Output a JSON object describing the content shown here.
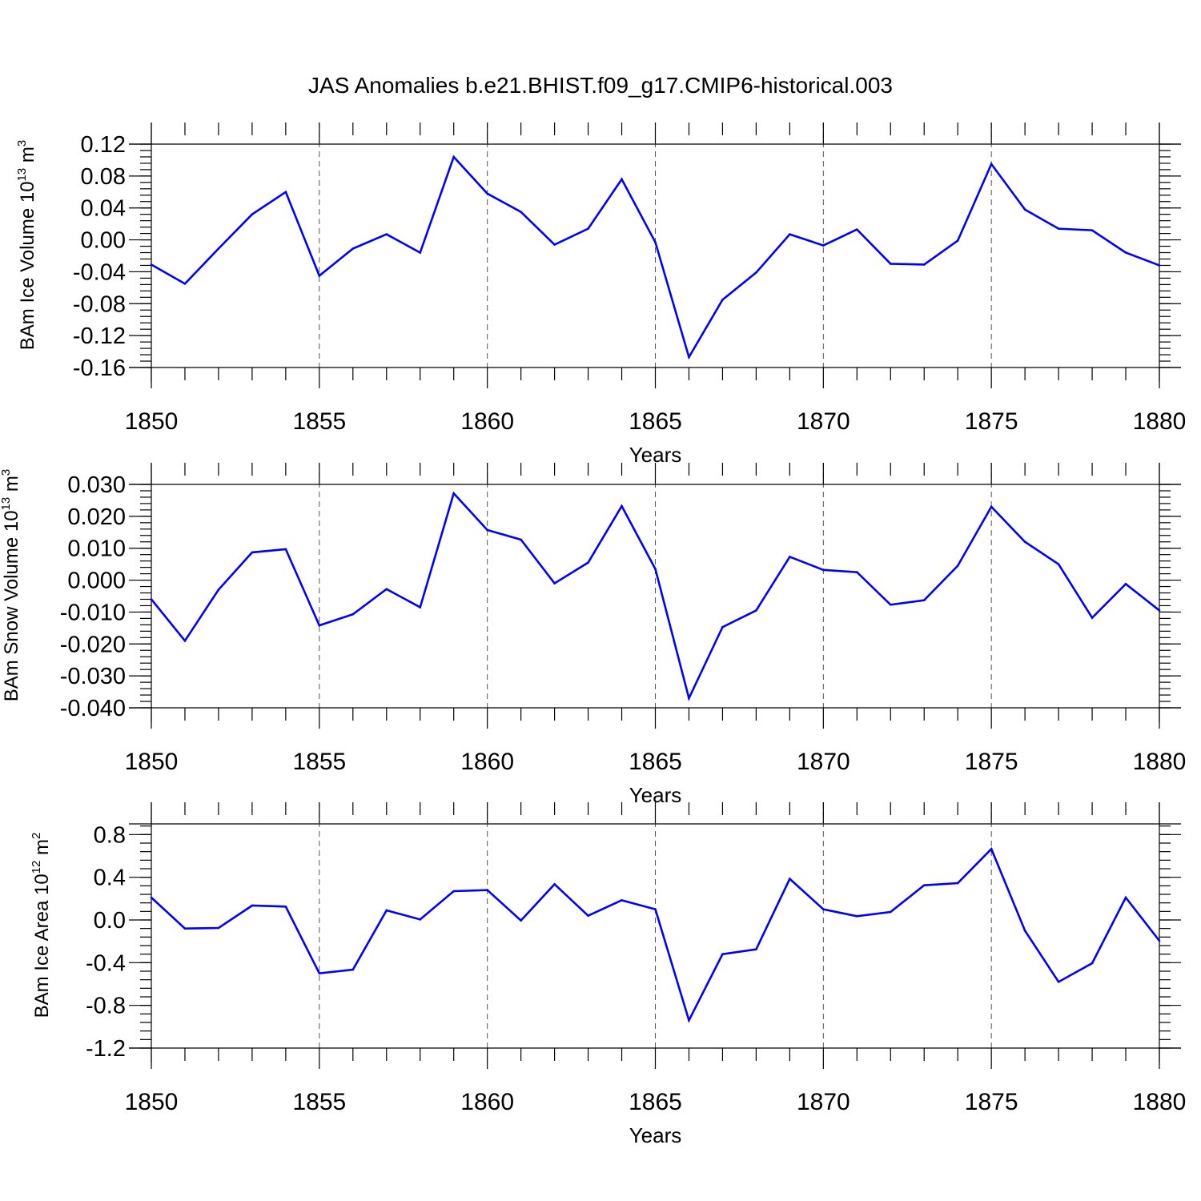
{
  "title": "JAS Anomalies b.e21.BHIST.f09_g17.CMIP6-historical.003",
  "colors": {
    "line": "#0000ff",
    "axis": "#000000",
    "grid": "#555555",
    "background": "#ffffff"
  },
  "chart_data": [
    {
      "type": "line",
      "xlabel": "Years",
      "ylabel": {
        "text": "BAm Ice Volume 10",
        "exp": "13",
        "unit": " m",
        "unit_exp": "3"
      },
      "xlim": [
        1850,
        1880
      ],
      "ylim": [
        -0.16,
        0.12
      ],
      "xticks": [
        "1850",
        "1855",
        "1860",
        "1865",
        "1870",
        "1875",
        "1880"
      ],
      "yticks": [
        "0.12",
        "0.08",
        "0.04",
        "0.00",
        "-0.04",
        "-0.08",
        "-0.12",
        "-0.16"
      ],
      "x": [
        1850,
        1851,
        1852,
        1853,
        1854,
        1855,
        1856,
        1857,
        1858,
        1859,
        1860,
        1861,
        1862,
        1863,
        1864,
        1865,
        1866,
        1867,
        1868,
        1869,
        1870,
        1871,
        1872,
        1873,
        1874,
        1875,
        1876,
        1877,
        1878,
        1879,
        1880
      ],
      "series": [
        {
          "values": [
            -0.031,
            -0.055,
            -0.011,
            0.032,
            0.06,
            -0.045,
            -0.011,
            0.007,
            -0.016,
            0.104,
            0.058,
            0.035,
            -0.006,
            0.014,
            0.076,
            -0.003,
            -0.147,
            -0.075,
            -0.041,
            0.007,
            -0.007,
            0.013,
            -0.03,
            -0.031,
            -0.001,
            0.095,
            0.038,
            0.014,
            0.012,
            -0.016,
            -0.032
          ]
        }
      ],
      "grid": "dashed vertical at labeled years"
    },
    {
      "type": "line",
      "xlabel": "Years",
      "ylabel": {
        "text": "BAm Snow Volume 10",
        "exp": "13",
        "unit": " m",
        "unit_exp": "3"
      },
      "xlim": [
        1850,
        1880
      ],
      "ylim": [
        -0.04,
        0.03
      ],
      "xticks": [
        "1850",
        "1855",
        "1860",
        "1865",
        "1870",
        "1875",
        "1880"
      ],
      "yticks": [
        "0.030",
        "0.020",
        "0.010",
        "0.000",
        "-0.010",
        "-0.020",
        "-0.030",
        "-0.040"
      ],
      "x": [
        1850,
        1851,
        1852,
        1853,
        1854,
        1855,
        1856,
        1857,
        1858,
        1859,
        1860,
        1861,
        1862,
        1863,
        1864,
        1865,
        1866,
        1867,
        1868,
        1869,
        1870,
        1871,
        1872,
        1873,
        1874,
        1875,
        1876,
        1877,
        1878,
        1879,
        1880
      ],
      "series": [
        {
          "values": [
            -0.006,
            -0.019,
            -0.003,
            0.0087,
            0.0097,
            -0.0142,
            -0.0107,
            -0.0028,
            -0.0085,
            0.0272,
            0.0157,
            0.0127,
            -0.001,
            0.0055,
            0.0232,
            0.0035,
            -0.037,
            -0.0147,
            -0.0095,
            0.0073,
            0.0032,
            0.0025,
            -0.0077,
            -0.0063,
            0.0045,
            0.023,
            0.012,
            0.005,
            -0.0118,
            -0.0012,
            -0.0095
          ]
        }
      ],
      "grid": "dashed vertical at labeled years"
    },
    {
      "type": "line",
      "xlabel": "Years",
      "ylabel": {
        "text": "BAm Ice Area 10",
        "exp": "12",
        "unit": " m",
        "unit_exp": "2"
      },
      "xlim": [
        1850,
        1880
      ],
      "ylim": [
        -1.2,
        0.9
      ],
      "xticks": [
        "1850",
        "1855",
        "1860",
        "1865",
        "1870",
        "1875",
        "1880"
      ],
      "yticks": [
        "0.8",
        "0.4",
        "0.0",
        "-0.4",
        "-0.8",
        "-1.2"
      ],
      "x": [
        1850,
        1851,
        1852,
        1853,
        1854,
        1855,
        1856,
        1857,
        1858,
        1859,
        1860,
        1861,
        1862,
        1863,
        1864,
        1865,
        1866,
        1867,
        1868,
        1869,
        1870,
        1871,
        1872,
        1873,
        1874,
        1875,
        1876,
        1877,
        1878,
        1879,
        1880
      ],
      "series": [
        {
          "values": [
            0.21,
            -0.08,
            -0.075,
            0.135,
            0.125,
            -0.5,
            -0.465,
            0.09,
            0.005,
            0.27,
            0.28,
            -0.005,
            0.335,
            0.04,
            0.185,
            0.1,
            -0.94,
            -0.32,
            -0.275,
            0.385,
            0.1,
            0.035,
            0.075,
            0.325,
            0.345,
            0.665,
            -0.1,
            -0.58,
            -0.405,
            0.21,
            -0.195
          ]
        }
      ],
      "grid": "dashed vertical at labeled years"
    }
  ]
}
